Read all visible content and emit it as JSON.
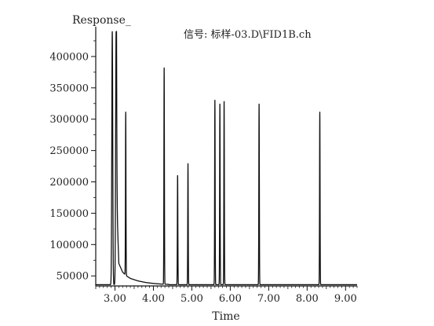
{
  "chart_data": {
    "type": "line",
    "title": "",
    "ylabel": "Response_",
    "xlabel": "Time",
    "signal_label": "信号: 标样-03.D\\FID1B.ch",
    "x_ticks": [
      3.0,
      4.0,
      5.0,
      6.0,
      7.0,
      8.0,
      9.0
    ],
    "x_tick_labels": [
      "3.00",
      "4.00",
      "5.00",
      "6.00",
      "7.00",
      "8.00",
      "9.00"
    ],
    "y_ticks": [
      50000,
      100000,
      150000,
      200000,
      250000,
      300000,
      350000,
      400000
    ],
    "y_tick_labels": [
      "50000",
      "100000",
      "150000",
      "200000",
      "250000",
      "300000",
      "350000",
      "400000"
    ],
    "xlim": [
      2.5,
      9.3
    ],
    "ylim": [
      34000,
      440000
    ],
    "grid": false,
    "baseline": 36000,
    "solvent_tail": {
      "x": [
        3.04,
        3.1,
        3.2,
        3.3,
        3.4,
        3.6,
        3.8,
        4.0,
        4.2,
        4.4
      ],
      "y": [
        180000,
        70000,
        56000,
        50000,
        46000,
        42000,
        39500,
        38000,
        37000,
        36500
      ]
    },
    "peaks": [
      {
        "time": 2.93,
        "response": 440000,
        "width": 0.03
      },
      {
        "time": 3.03,
        "response": 440000,
        "width": 0.03
      },
      {
        "time": 3.28,
        "response": 296000,
        "width": 0.016
      },
      {
        "time": 4.28,
        "response": 382000,
        "width": 0.016
      },
      {
        "time": 4.63,
        "response": 210000,
        "width": 0.016
      },
      {
        "time": 4.9,
        "response": 229000,
        "width": 0.016
      },
      {
        "time": 5.6,
        "response": 331000,
        "width": 0.016
      },
      {
        "time": 5.73,
        "response": 325000,
        "width": 0.016
      },
      {
        "time": 5.84,
        "response": 329000,
        "width": 0.016
      },
      {
        "time": 6.75,
        "response": 325000,
        "width": 0.016
      },
      {
        "time": 8.33,
        "response": 312000,
        "width": 0.016
      }
    ]
  }
}
